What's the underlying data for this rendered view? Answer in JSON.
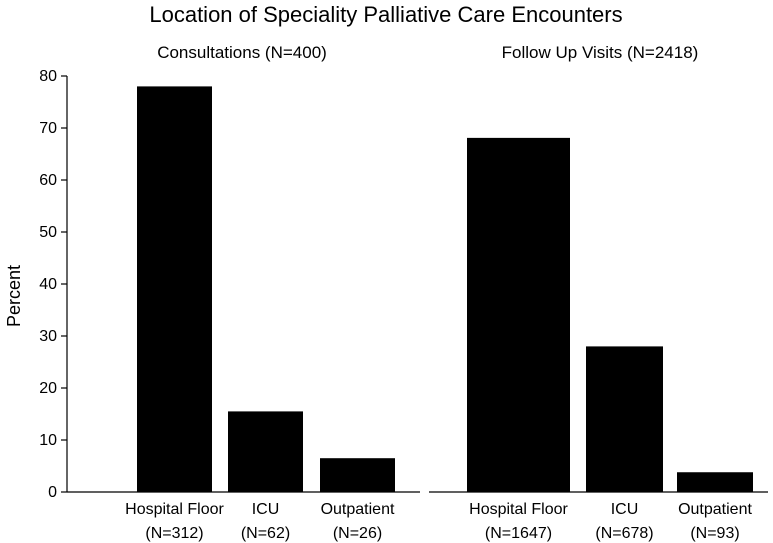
{
  "chart_data": {
    "type": "bar",
    "title": "Location of Speciality Palliative Care Encounters",
    "ylabel": "Percent",
    "ylim": [
      0,
      82
    ],
    "yticks": [
      0,
      10,
      20,
      30,
      40,
      50,
      60,
      70,
      80
    ],
    "bar_color": "#000000",
    "panels": [
      {
        "subtitle": "Consultations (N=400)",
        "categories": [
          "Hospital Floor",
          "ICU",
          "Outpatient"
        ],
        "counts": [
          "(N=312)",
          "(N=62)",
          "(N=26)"
        ],
        "values": [
          78,
          15.5,
          6.5
        ]
      },
      {
        "subtitle": "Follow Up Visits (N=2418)",
        "categories": [
          "Hospital Floor",
          "ICU",
          "Outpatient"
        ],
        "counts": [
          "(N=1647)",
          "(N=678)",
          "(N=93)"
        ],
        "values": [
          68.1,
          28,
          3.8
        ]
      }
    ]
  }
}
